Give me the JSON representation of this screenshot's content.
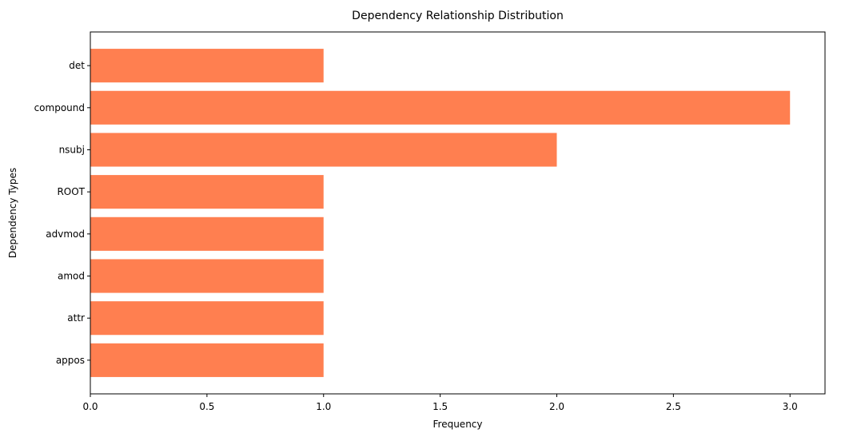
{
  "chart_data": {
    "type": "bar",
    "orientation": "horizontal",
    "title": "Dependency Relationship Distribution",
    "xlabel": "Frequency",
    "ylabel": "Dependency Types",
    "categories": [
      "det",
      "compound",
      "nsubj",
      "ROOT",
      "advmod",
      "amod",
      "attr",
      "appos"
    ],
    "values": [
      1,
      3,
      2,
      1,
      1,
      1,
      1,
      1
    ],
    "xlim": [
      0,
      3.15
    ],
    "xticks": [
      0,
      0.5,
      1,
      1.5,
      2,
      2.5,
      3
    ],
    "xtick_labels": [
      "0.0",
      "0.5",
      "1.0",
      "1.5",
      "2.0",
      "2.5",
      "3.0"
    ],
    "bar_color": "#ff7f50",
    "grid": false,
    "legend": "none"
  }
}
